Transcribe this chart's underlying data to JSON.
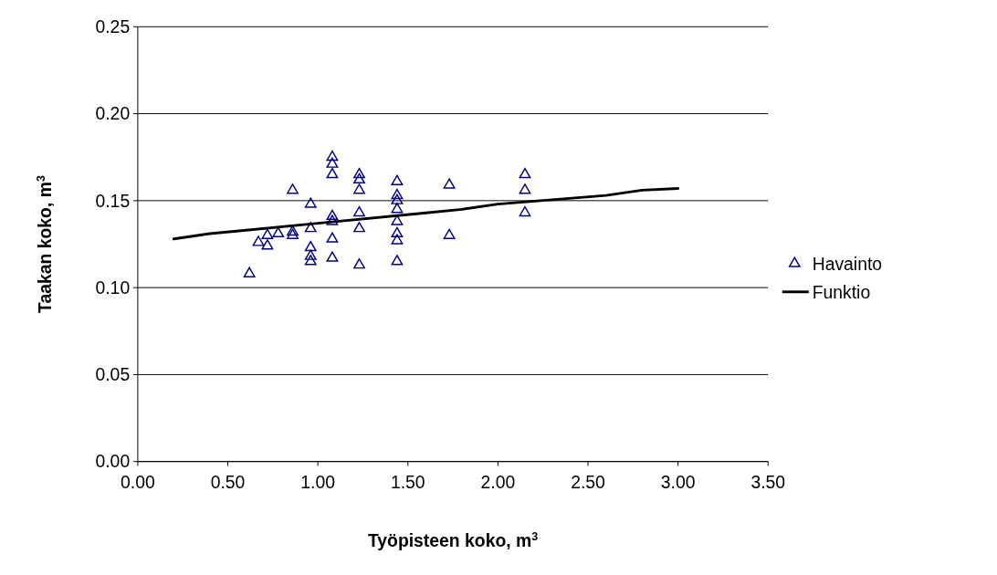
{
  "chart_data": {
    "type": "scatter",
    "xlabel": "Työpisteen koko, m$^{3}$",
    "ylabel": "Taakan koko, m$^{3}$",
    "xlim": [
      0,
      3.5
    ],
    "ylim": [
      0,
      0.25
    ],
    "xticks": [
      {
        "value": 0,
        "label": "0.00"
      },
      {
        "value": 0.5,
        "label": "0.50"
      },
      {
        "value": 1,
        "label": "1.00"
      },
      {
        "value": 1.5,
        "label": "1.50"
      },
      {
        "value": 2,
        "label": "2.00"
      },
      {
        "value": 2.5,
        "label": "2.50"
      },
      {
        "value": 3,
        "label": "3.00"
      },
      {
        "value": 3.5,
        "label": "3.50"
      }
    ],
    "yticks": [
      {
        "value": 0,
        "label": "0.00"
      },
      {
        "value": 0.05,
        "label": "0.05"
      },
      {
        "value": 0.1,
        "label": "0.10"
      },
      {
        "value": 0.15,
        "label": "0.15"
      },
      {
        "value": 0.2,
        "label": "0.20"
      },
      {
        "value": 0.25,
        "label": "0.25"
      }
    ],
    "grid": "y",
    "legend": "right",
    "series": [
      {
        "name": "Havainto",
        "type": "scatter",
        "marker": "triangle",
        "color": "#000080",
        "x": [
          0.62,
          0.67,
          0.72,
          0.72,
          0.78,
          0.86,
          0.86,
          0.86,
          0.96,
          0.96,
          0.96,
          0.96,
          0.96,
          1.08,
          1.08,
          1.08,
          1.08,
          1.08,
          1.08,
          1.08,
          1.23,
          1.23,
          1.23,
          1.23,
          1.23,
          1.23,
          1.44,
          1.44,
          1.44,
          1.44,
          1.44,
          1.44,
          1.44,
          1.44,
          1.73,
          1.73,
          2.15,
          2.15,
          2.15
        ],
        "values": [
          0.108,
          0.126,
          0.13,
          0.124,
          0.131,
          0.156,
          0.132,
          0.13,
          0.148,
          0.134,
          0.123,
          0.118,
          0.115,
          0.175,
          0.171,
          0.165,
          0.141,
          0.138,
          0.128,
          0.117,
          0.165,
          0.162,
          0.156,
          0.143,
          0.134,
          0.113,
          0.161,
          0.153,
          0.15,
          0.145,
          0.138,
          0.131,
          0.127,
          0.115,
          0.159,
          0.13,
          0.165,
          0.156,
          0.143
        ]
      },
      {
        "name": "Funktio",
        "type": "line",
        "marker": "none",
        "color": "#000000",
        "x": [
          0.2,
          0.4,
          1.0,
          1.6,
          1.8,
          2.0,
          2.6,
          2.8,
          3.0
        ],
        "values": [
          0.128,
          0.131,
          0.137,
          0.143,
          0.145,
          0.148,
          0.153,
          0.156,
          0.157
        ]
      }
    ]
  }
}
